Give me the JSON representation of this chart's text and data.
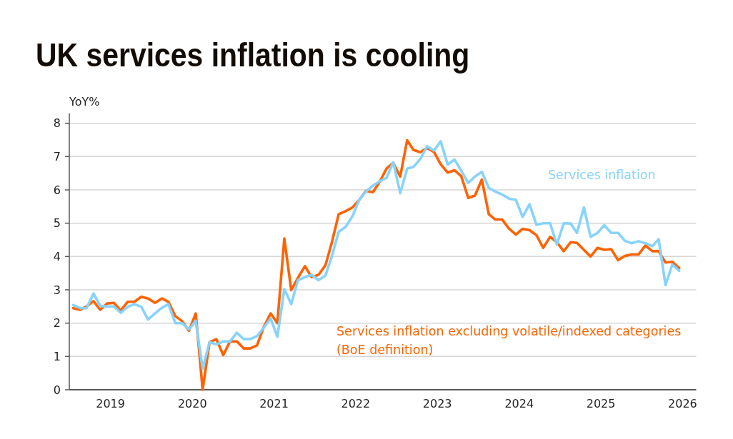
{
  "chart_data": {
    "type": "line",
    "title": "UK services inflation is cooling",
    "ylabel": "YoY%",
    "x": [
      "2019-01",
      "2019-02",
      "2019-03",
      "2019-04",
      "2019-05",
      "2019-06",
      "2019-07",
      "2019-08",
      "2019-09",
      "2019-10",
      "2019-11",
      "2019-12",
      "2020-01",
      "2020-02",
      "2020-03",
      "2020-04",
      "2020-05",
      "2020-06",
      "2020-07",
      "2020-08",
      "2020-09",
      "2020-10",
      "2020-11",
      "2020-12",
      "2021-01",
      "2021-02",
      "2021-03",
      "2021-04",
      "2021-05",
      "2021-06",
      "2021-07",
      "2021-08",
      "2021-09",
      "2021-10",
      "2021-11",
      "2021-12",
      "2022-01",
      "2022-02",
      "2022-03",
      "2022-04",
      "2022-05",
      "2022-06",
      "2022-07",
      "2022-08",
      "2022-09",
      "2022-10",
      "2022-11",
      "2022-12",
      "2023-01",
      "2023-02",
      "2023-03",
      "2023-04",
      "2023-05",
      "2023-06",
      "2023-07",
      "2023-08",
      "2023-09",
      "2023-10",
      "2023-11",
      "2023-12",
      "2024-01",
      "2024-02",
      "2024-03",
      "2024-04",
      "2024-05",
      "2024-06",
      "2024-07",
      "2024-08",
      "2024-09",
      "2024-10",
      "2024-11",
      "2024-12",
      "2025-01",
      "2025-02",
      "2025-03",
      "2025-04",
      "2025-05",
      "2025-06",
      "2025-07",
      "2025-08",
      "2025-09",
      "2025-10",
      "2025-11",
      "2025-12",
      "2026-01",
      "2026-02",
      "2026-03",
      "2026-04",
      "2026-05",
      "2026-06"
    ],
    "xlim": [
      "2018-12-14",
      "2026-08-16"
    ],
    "xticks": [
      {
        "value": "2019-06-16",
        "label": "2019"
      },
      {
        "value": "2020-06-16",
        "label": "2020"
      },
      {
        "value": "2021-06-16",
        "label": "2021"
      },
      {
        "value": "2022-06-16",
        "label": "2022"
      },
      {
        "value": "2023-06-16",
        "label": "2023"
      },
      {
        "value": "2024-06-16",
        "label": "2024"
      },
      {
        "value": "2025-06-16",
        "label": "2025"
      },
      {
        "value": "2026-06-16",
        "label": "2026"
      }
    ],
    "ylim": [
      0,
      8.3
    ],
    "yticks": [
      0,
      1,
      2,
      3,
      4,
      5,
      6,
      7,
      8
    ],
    "grid": "y",
    "series": [
      {
        "name": "Services inflation excluding volatile/indexed categories\n(BoE definition)",
        "color": "#ff6200",
        "values": [
          2.45,
          2.4,
          2.5,
          2.66,
          2.4,
          2.59,
          2.61,
          2.38,
          2.64,
          2.64,
          2.79,
          2.74,
          2.61,
          2.74,
          2.64,
          2.21,
          2.06,
          1.77,
          2.29,
          0.0,
          1.43,
          1.52,
          1.04,
          1.45,
          1.45,
          1.24,
          1.24,
          1.33,
          1.88,
          2.29,
          2.0,
          4.54,
          2.99,
          3.36,
          3.71,
          3.38,
          3.45,
          3.74,
          4.41,
          5.27,
          5.36,
          5.47,
          5.69,
          5.97,
          5.93,
          6.24,
          6.64,
          6.81,
          6.4,
          7.49,
          7.2,
          7.13,
          7.26,
          7.14,
          6.77,
          6.52,
          6.59,
          6.41,
          5.76,
          5.83,
          6.31,
          5.27,
          5.11,
          5.11,
          4.84,
          4.66,
          4.83,
          4.79,
          4.64,
          4.26,
          4.59,
          4.43,
          4.16,
          4.43,
          4.41,
          4.2,
          4.0,
          4.26,
          4.2,
          4.22,
          3.89,
          4.02,
          4.06,
          4.06,
          4.33,
          4.16,
          4.16,
          3.82,
          3.84,
          3.65
        ]
      },
      {
        "name": "Services inflation",
        "color": "#87d3fb",
        "values": [
          2.54,
          2.45,
          2.45,
          2.89,
          2.52,
          2.5,
          2.5,
          2.31,
          2.49,
          2.57,
          2.49,
          2.11,
          2.29,
          2.46,
          2.57,
          2.0,
          2.0,
          1.81,
          2.07,
          0.63,
          1.43,
          1.36,
          1.45,
          1.45,
          1.71,
          1.52,
          1.52,
          1.61,
          1.86,
          2.14,
          1.59,
          3.02,
          2.57,
          3.29,
          3.38,
          3.45,
          3.29,
          3.43,
          3.99,
          4.74,
          4.88,
          5.2,
          5.69,
          5.95,
          6.13,
          6.26,
          6.36,
          6.83,
          5.9,
          6.64,
          6.69,
          6.93,
          7.31,
          7.18,
          7.46,
          6.76,
          6.91,
          6.57,
          6.21,
          6.4,
          6.54,
          6.06,
          5.95,
          5.86,
          5.74,
          5.7,
          5.19,
          5.57,
          4.95,
          5.0,
          5.0,
          4.36,
          5.0,
          4.99,
          4.71,
          5.47,
          4.59,
          4.71,
          4.94,
          4.71,
          4.71,
          4.47,
          4.4,
          4.46,
          4.4,
          4.31,
          4.52,
          3.14,
          3.76,
          3.57
        ]
      }
    ]
  }
}
